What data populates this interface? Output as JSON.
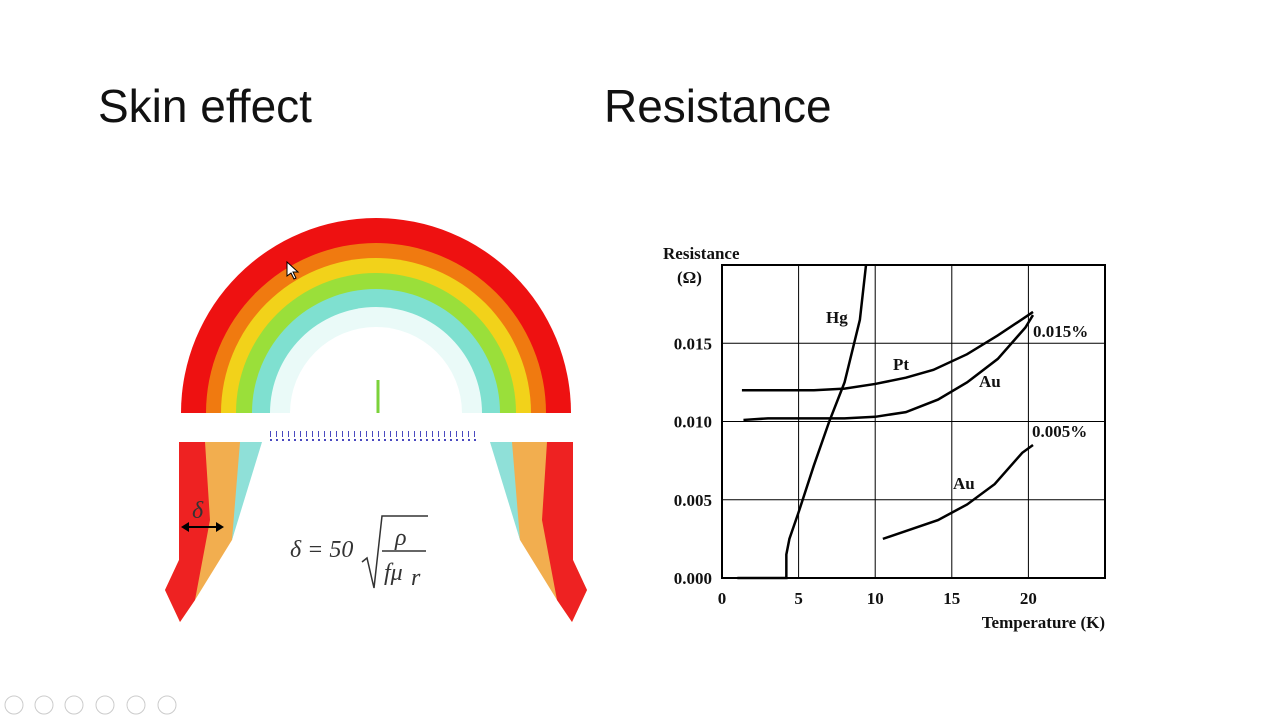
{
  "slide": {
    "titles": [
      "Skin effect",
      "Resistance"
    ],
    "delta_label": "δ",
    "formula": {
      "lhs": "δ = 50",
      "numerator": "ρ",
      "denominator": "fμ",
      "subscript": "r"
    }
  },
  "chart_data": {
    "type": "line",
    "ylabel": [
      "Resistance",
      "(Ω)"
    ],
    "xlabel": "Temperature (K)",
    "xlim": [
      0,
      25
    ],
    "xticks": [
      0,
      5,
      10,
      15,
      20
    ],
    "ylim": [
      0,
      0.02
    ],
    "yticks": [
      {
        "value": 0,
        "label": "0.000"
      },
      {
        "value": 0.005,
        "label": "0.005"
      },
      {
        "value": 0.01,
        "label": "0.010"
      },
      {
        "value": 0.015,
        "label": "0.015"
      }
    ],
    "grid": true,
    "series": [
      {
        "name": "Hg",
        "color": "#000000",
        "x": [
          1,
          2.6,
          3.6,
          4.2,
          4.2,
          4.4,
          5,
          6,
          7,
          8,
          9,
          9.4
        ],
        "values": [
          0,
          0,
          0,
          0,
          0.0015,
          0.0025,
          0.0042,
          0.0072,
          0.01,
          0.0125,
          0.0165,
          0.02
        ]
      },
      {
        "name": "Pt",
        "color": "#000000",
        "x": [
          1.3,
          2,
          2.8,
          3.7,
          6,
          8,
          10,
          12,
          13.8,
          16,
          18,
          20,
          20.3
        ],
        "values": [
          0.012,
          0.012,
          0.012,
          0.012,
          0.012,
          0.0121,
          0.0124,
          0.0128,
          0.0133,
          0.0143,
          0.0155,
          0.0168,
          0.017
        ]
      },
      {
        "name": "Au",
        "color": "#000000",
        "x": [
          1.4,
          3,
          4,
          8,
          10,
          12,
          14.1,
          16,
          18,
          19.8,
          20.3
        ],
        "values": [
          0.0101,
          0.0102,
          0.0102,
          0.0102,
          0.0103,
          0.0106,
          0.0114,
          0.0125,
          0.014,
          0.016,
          0.0168
        ]
      },
      {
        "name": "Au",
        "color": "#000000",
        "x": [
          10.5,
          12,
          14.1,
          16,
          17.8,
          19.6,
          20.3
        ],
        "values": [
          0.0025,
          0.003,
          0.0037,
          0.0047,
          0.006,
          0.008,
          0.0085
        ]
      }
    ],
    "annotations": [
      "0.015%",
      "0.005%"
    ]
  }
}
